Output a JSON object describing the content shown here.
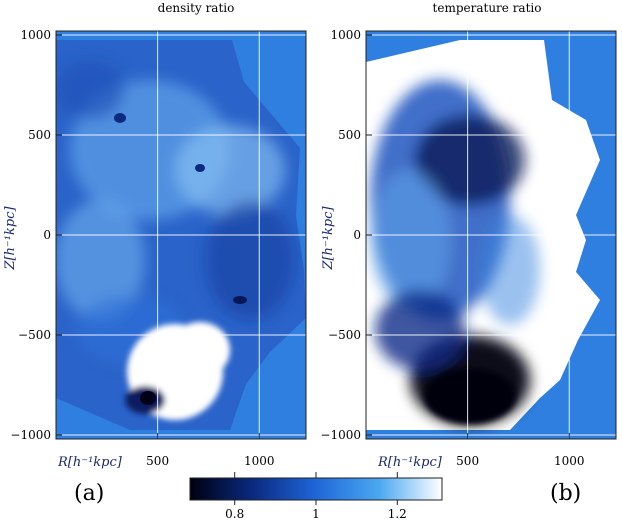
{
  "chart_data": [
    {
      "type": "heatmap",
      "title": "density ratio",
      "xlabel": "R[h⁻¹kpc]",
      "ylabel": "Z[h⁻¹kpc]",
      "xlim": [
        0,
        1230
      ],
      "ylim": [
        -1020,
        1020
      ],
      "xticks": [
        500,
        1000
      ],
      "yticks": [
        1000,
        500,
        0,
        -500,
        -1000
      ],
      "grid": true,
      "panel_label": "(a)",
      "background_color": "#2e7fe0"
    },
    {
      "type": "heatmap",
      "title": "temperature ratio",
      "xlabel": "R[h⁻¹kpc]",
      "ylabel": "Z[h⁻¹kpc]",
      "xlim": [
        0,
        1230
      ],
      "ylim": [
        -1020,
        1020
      ],
      "xticks": [
        500,
        1000
      ],
      "yticks": [
        1000,
        500,
        0,
        -500,
        -1000
      ],
      "grid": true,
      "panel_label": "(b)",
      "background_color": "#2e7fe0"
    }
  ],
  "colorbar": {
    "range": [
      0.69,
      1.31
    ],
    "ticks": [
      0.8,
      1,
      1.2
    ],
    "colors": [
      "#000010",
      "#0a2a80",
      "#1f66d8",
      "#4aa8f0",
      "#ffffff"
    ]
  }
}
